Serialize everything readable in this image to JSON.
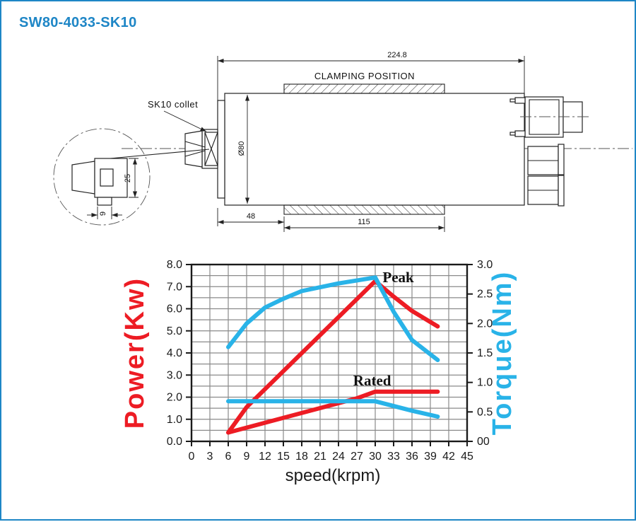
{
  "title": "SW80-4033-SK10",
  "colors": {
    "accent": "#1E86C6",
    "power": "#ED1C24",
    "torque": "#29B3E8"
  },
  "drawing": {
    "overall_length": "224.8",
    "clamping_label": "CLAMPING POSITION",
    "collet_label": "SK10 collet",
    "body_diameter": "Ø80",
    "nose_length": "48",
    "clamp_length": "115",
    "detail_height": "25",
    "detail_width": "9"
  },
  "chart_data": {
    "type": "line",
    "title": "",
    "xlabel": "speed(krpm)",
    "ylabel_left": "Power(Kw)",
    "ylabel_right": "Torque(Nm)",
    "xlim": [
      0,
      45
    ],
    "ylim_left": [
      0,
      8
    ],
    "ylim_right": [
      0,
      3
    ],
    "x_ticks": [
      0,
      3,
      6,
      9,
      12,
      15,
      18,
      21,
      24,
      27,
      30,
      33,
      36,
      39,
      42,
      45
    ],
    "y_left_tick_labels": [
      "8.0",
      "7.0",
      "6.0",
      "5.0",
      "4.0",
      "3.0",
      "2.0",
      "1.0",
      "0.0"
    ],
    "y_right_tick_labels": [
      "3.0",
      "2.5",
      "2.0",
      "1.5",
      "1.0",
      "0.5",
      "00"
    ],
    "grid": {
      "x_step": 3,
      "y_step_left": 0.5,
      "color": "#8a8a8a",
      "on": true
    },
    "legend_position": "none",
    "left_axis_color": "#ED1C24",
    "right_axis_color": "#29B3E8",
    "series": [
      {
        "name": "peak-power",
        "axis": "left",
        "color": "#ED1C24",
        "width": 6,
        "points": [
          [
            6,
            0.4
          ],
          [
            9,
            1.55
          ],
          [
            30,
            7.25
          ],
          [
            33,
            6.55
          ],
          [
            36,
            5.9
          ],
          [
            40.2,
            5.2
          ]
        ]
      },
      {
        "name": "rated-power",
        "axis": "left",
        "color": "#ED1C24",
        "width": 6,
        "points": [
          [
            6,
            0.4
          ],
          [
            27,
            1.95
          ],
          [
            30,
            2.25
          ],
          [
            40.2,
            2.25
          ]
        ]
      },
      {
        "name": "peak-torque",
        "axis": "right",
        "color": "#29B3E8",
        "width": 6,
        "points": [
          [
            6,
            1.6
          ],
          [
            9,
            2.0
          ],
          [
            12,
            2.27
          ],
          [
            15,
            2.42
          ],
          [
            18,
            2.55
          ],
          [
            24,
            2.68
          ],
          [
            30,
            2.78
          ],
          [
            33,
            2.2
          ],
          [
            36,
            1.72
          ],
          [
            40.2,
            1.38
          ]
        ]
      },
      {
        "name": "rated-torque",
        "axis": "right",
        "color": "#29B3E8",
        "width": 6,
        "points": [
          [
            6,
            0.68
          ],
          [
            30,
            0.68
          ],
          [
            36,
            0.52
          ],
          [
            40.2,
            0.42
          ]
        ]
      }
    ],
    "annotations": [
      {
        "text": "Peak",
        "x": 31.2,
        "y": 7.2
      },
      {
        "text": "Rated",
        "x": 26.4,
        "y": 2.53
      }
    ]
  }
}
